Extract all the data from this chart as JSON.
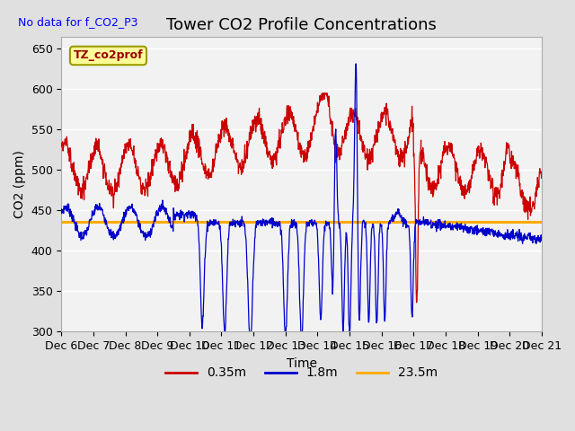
{
  "title": "Tower CO2 Profile Concentrations",
  "subtitle": "No data for f_CO2_P3",
  "xlabel": "Time",
  "ylabel": "CO2 (ppm)",
  "ylim": [
    300,
    665
  ],
  "yticks": [
    300,
    350,
    400,
    450,
    500,
    550,
    600,
    650
  ],
  "xlim": [
    0,
    15.0
  ],
  "xtick_labels": [
    "Dec 6",
    "Dec 7",
    "Dec 8",
    "Dec 9",
    "Dec 10",
    "Dec 11",
    "Dec 12",
    "Dec 13",
    "Dec 14",
    "Dec 15",
    "Dec 16",
    "Dec 17",
    "Dec 18",
    "Dec 19",
    "Dec 20",
    "Dec 21"
  ],
  "colors": {
    "red": "#cc0000",
    "blue": "#0000cc",
    "orange": "#ffaa00"
  },
  "legend_box_color": "#ffff99",
  "legend_box_text": "TZ_co2prof",
  "legend_entries": [
    "0.35m",
    "1.8m",
    "23.5m"
  ],
  "orange_line_y": 436,
  "title_fontsize": 13,
  "label_fontsize": 10,
  "tick_fontsize": 9
}
